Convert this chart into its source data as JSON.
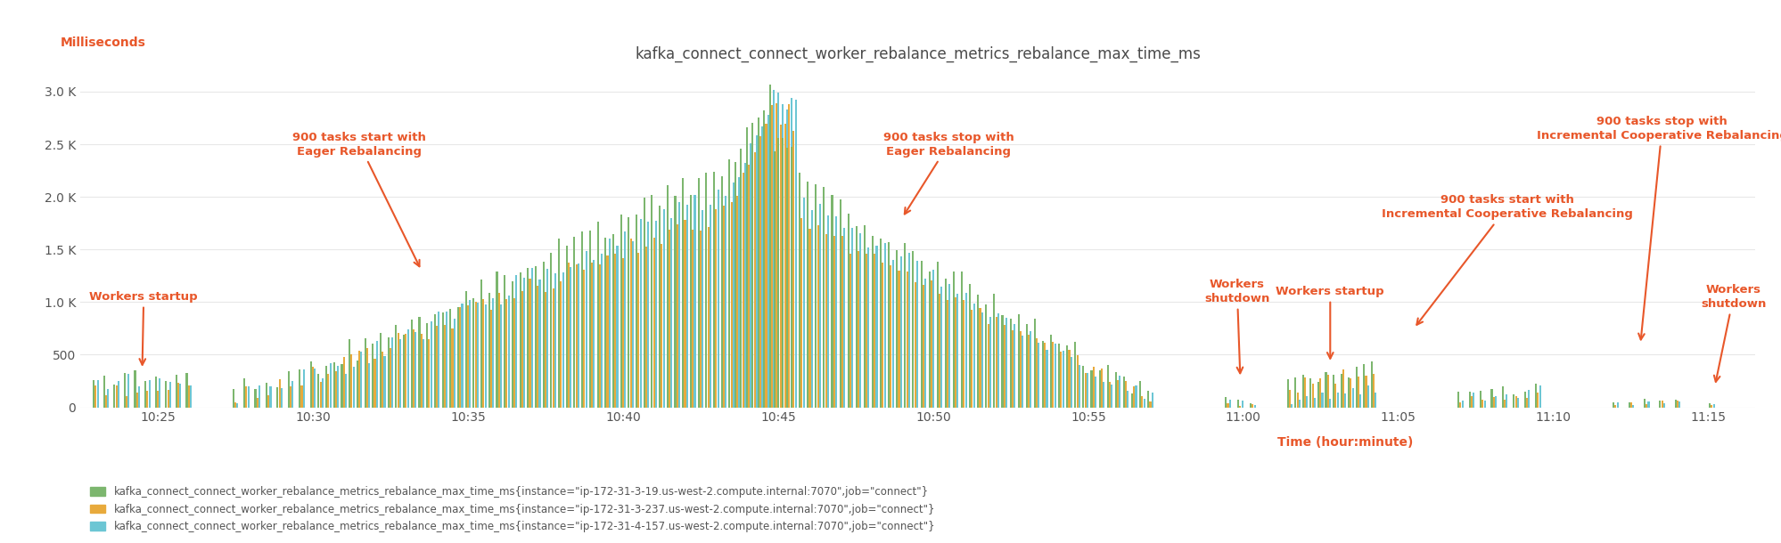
{
  "title": "kafka_connect_connect_worker_rebalance_metrics_rebalance_max_time_ms",
  "ylabel": "Milliseconds",
  "xlabel": "Time (hour:minute)",
  "title_color": "#4a4a4a",
  "ylabel_color": "#e8572a",
  "xlabel_color": "#e8572a",
  "annotation_color": "#e8572a",
  "bg_color": "#ffffff",
  "grid_color": "#e8e8e8",
  "colors_green": "#7cb66e",
  "colors_gold": "#e8aa3c",
  "colors_cyan": "#6cc6d4",
  "legend_labels": [
    "kafka_connect_connect_worker_rebalance_metrics_rebalance_max_time_ms{instance=\"ip-172-31-3-19.us-west-2.compute.internal:7070\",job=\"connect\"}",
    "kafka_connect_connect_worker_rebalance_metrics_rebalance_max_time_ms{instance=\"ip-172-31-3-237.us-west-2.compute.internal:7070\",job=\"connect\"}",
    "kafka_connect_connect_worker_rebalance_metrics_rebalance_max_time_ms{instance=\"ip-172-31-4-157.us-west-2.compute.internal:7070\",job=\"connect\"}"
  ],
  "yticks": [
    0,
    500,
    1000,
    1500,
    2000,
    2500,
    3000
  ],
  "ytick_labels": [
    "0",
    "500",
    "1.0 K",
    "1.5 K",
    "2.0 K",
    "2.5 K",
    "3.0 K"
  ],
  "xtick_pos": [
    25,
    30,
    35,
    40,
    45,
    50,
    55,
    60,
    65,
    70,
    75
  ],
  "xtick_labels": [
    "10:25",
    "10:30",
    "10:35",
    "10:40",
    "10:45",
    "10:50",
    "10:55",
    "11:00",
    "11:05",
    "11:10",
    "11:15"
  ],
  "xlim": [
    22.5,
    76.5
  ],
  "ylim": [
    0,
    3200
  ]
}
